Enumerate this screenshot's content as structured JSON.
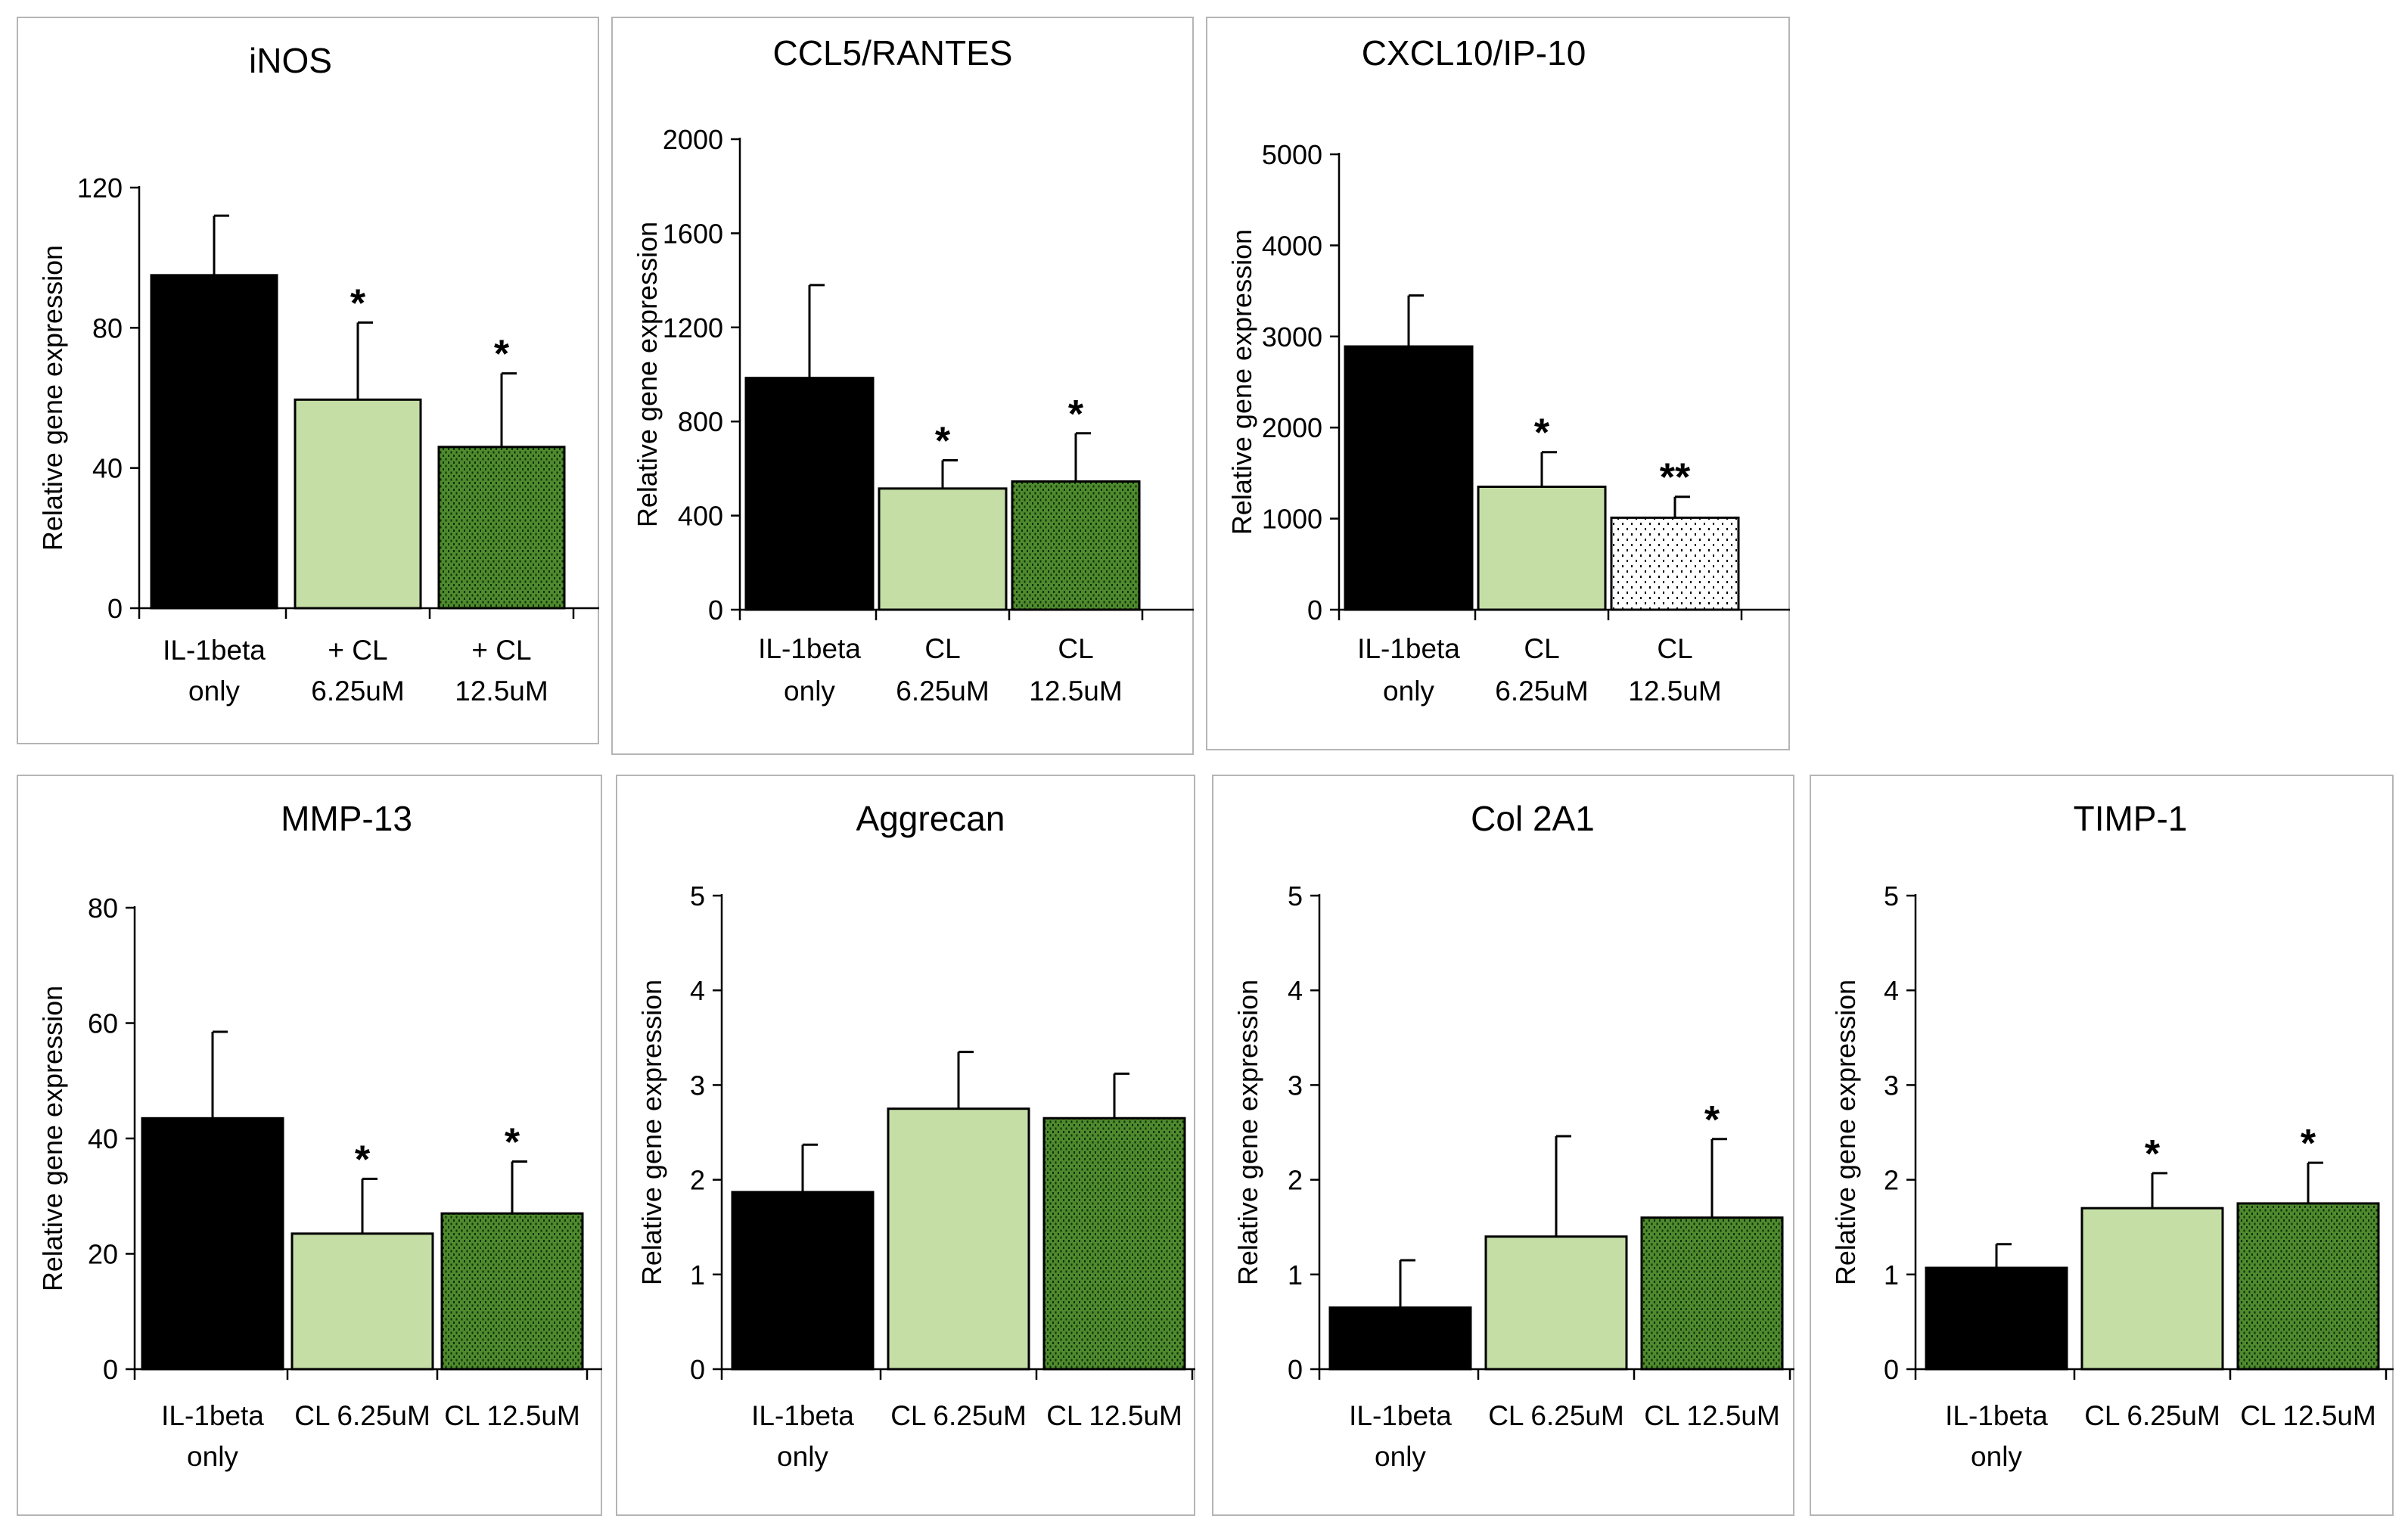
{
  "colors": {
    "il1beta": "#000000",
    "cl_low": "#c5dea5",
    "cl_high": "#4f8a2e",
    "cl_high_dots": "#0d2f05",
    "stipple_bg": "#ffffff",
    "stipple_dots": "#000000",
    "axis": "#000000",
    "panel_border": "#b5b5b5"
  },
  "chart_data": [
    {
      "type": "bar",
      "title": "iNOS",
      "ylabel": "Relative gene expression",
      "xlabel": "",
      "ylim": [
        0,
        120
      ],
      "yticks": [
        0,
        40,
        80,
        120
      ],
      "categories": [
        [
          "IL-1beta",
          "only"
        ],
        [
          "+ CL",
          "6.25uM"
        ],
        [
          "+ CL",
          "12.5uM"
        ]
      ],
      "values": [
        95,
        59.5,
        46
      ],
      "errors": [
        17,
        22,
        21
      ],
      "significance": [
        "",
        "*",
        "*"
      ],
      "fills": [
        "black",
        "light",
        "dark"
      ],
      "grid": false
    },
    {
      "type": "bar",
      "title": "CCL5/RANTES",
      "ylabel": "Relative gene expression",
      "xlabel": "",
      "ylim": [
        0,
        2000
      ],
      "yticks": [
        0,
        400,
        800,
        1200,
        1600,
        2000
      ],
      "categories": [
        [
          "IL-1beta",
          "only"
        ],
        [
          "CL",
          "6.25uM"
        ],
        [
          "CL",
          "12.5uM"
        ]
      ],
      "values": [
        985,
        515,
        545
      ],
      "errors": [
        395,
        120,
        205
      ],
      "significance": [
        "",
        "*",
        "*"
      ],
      "fills": [
        "black",
        "light",
        "dark"
      ],
      "grid": false
    },
    {
      "type": "bar",
      "title": "CXCL10/IP-10",
      "ylabel": "Relative gene expression",
      "xlabel": "",
      "ylim": [
        0,
        5000
      ],
      "yticks": [
        0,
        1000,
        2000,
        3000,
        4000,
        5000
      ],
      "categories": [
        [
          "IL-1beta",
          "only"
        ],
        [
          "CL",
          "6.25uM"
        ],
        [
          "CL",
          "12.5uM"
        ]
      ],
      "values": [
        2890,
        1350,
        1010
      ],
      "errors": [
        560,
        380,
        230
      ],
      "significance": [
        "",
        "*",
        "**"
      ],
      "fills": [
        "black",
        "light",
        "stipple"
      ],
      "grid": false
    },
    {
      "type": "bar",
      "title": "MMP-13",
      "ylabel": "Relative gene expression",
      "xlabel": "",
      "ylim": [
        0,
        80
      ],
      "yticks": [
        0,
        20,
        40,
        60,
        80
      ],
      "categories": [
        [
          "IL-1beta",
          "only"
        ],
        [
          "CL 6.25uM"
        ],
        [
          "CL 12.5uM"
        ]
      ],
      "values": [
        43.5,
        23.5,
        27
      ],
      "errors": [
        15,
        9.5,
        9
      ],
      "significance": [
        "",
        "*",
        "*"
      ],
      "fills": [
        "black",
        "light",
        "dark"
      ],
      "grid": false
    },
    {
      "type": "bar",
      "title": "Aggrecan",
      "ylabel": "Relative gene expression",
      "xlabel": "",
      "ylim": [
        0,
        5
      ],
      "yticks": [
        0,
        1,
        2,
        3,
        4,
        5
      ],
      "categories": [
        [
          "IL-1beta",
          "only"
        ],
        [
          "CL 6.25uM"
        ],
        [
          "CL 12.5uM"
        ]
      ],
      "values": [
        1.87,
        2.75,
        2.65
      ],
      "errors": [
        0.5,
        0.6,
        0.47
      ],
      "significance": [
        "",
        "",
        ""
      ],
      "fills": [
        "black",
        "light",
        "dark"
      ],
      "grid": false
    },
    {
      "type": "bar",
      "title": "Col 2A1",
      "ylabel": "Relative gene expression",
      "xlabel": "",
      "ylim": [
        0,
        5
      ],
      "yticks": [
        0,
        1,
        2,
        3,
        4,
        5
      ],
      "categories": [
        [
          "IL-1beta",
          "only"
        ],
        [
          "CL 6.25uM"
        ],
        [
          "CL 12.5uM"
        ]
      ],
      "values": [
        0.65,
        1.4,
        1.6
      ],
      "errors": [
        0.5,
        1.06,
        0.83
      ],
      "significance": [
        "",
        "",
        "*"
      ],
      "fills": [
        "black",
        "light",
        "dark"
      ],
      "grid": false
    },
    {
      "type": "bar",
      "title": "TIMP-1",
      "ylabel": "Relative gene expression",
      "xlabel": "",
      "ylim": [
        0,
        5
      ],
      "yticks": [
        0,
        1,
        2,
        3,
        4,
        5
      ],
      "categories": [
        [
          "IL-1beta",
          "only"
        ],
        [
          "CL 6.25uM"
        ],
        [
          "CL 12.5uM"
        ]
      ],
      "values": [
        1.07,
        1.7,
        1.75
      ],
      "errors": [
        0.25,
        0.37,
        0.43
      ],
      "significance": [
        "",
        "*",
        "*"
      ],
      "fills": [
        "black",
        "light",
        "dark"
      ],
      "grid": false
    }
  ]
}
